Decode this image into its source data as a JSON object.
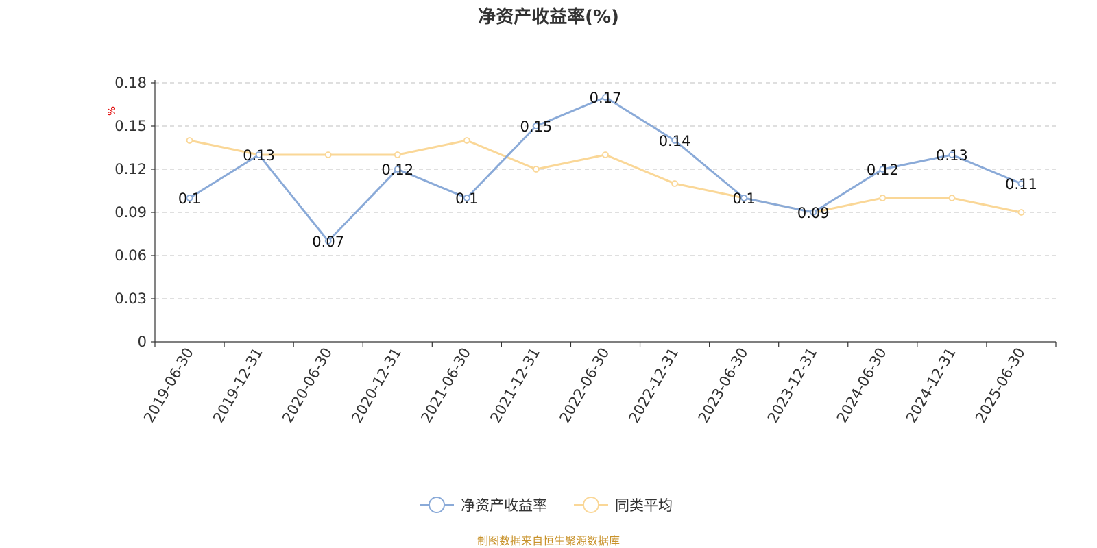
{
  "chart_data": {
    "type": "line",
    "title": "净资产收益率(%)",
    "ylabel": "%",
    "xlabel": "",
    "categories": [
      "2019-06-30",
      "2019-12-31",
      "2020-06-30",
      "2020-12-31",
      "2021-06-30",
      "2021-12-31",
      "2022-06-30",
      "2022-12-31",
      "2023-06-30",
      "2023-12-31",
      "2024-06-30",
      "2024-12-31",
      "2025-06-30"
    ],
    "y_ticks": [
      "0",
      "0.03",
      "0.06",
      "0.09",
      "0.12",
      "0.15",
      "0.18"
    ],
    "ylim": [
      0,
      0.18
    ],
    "grid": true,
    "legend_position": "bottom-center",
    "series": [
      {
        "name": "净资产收益率",
        "color": "#8aaad8",
        "values": [
          0.1,
          0.13,
          0.07,
          0.12,
          0.1,
          0.15,
          0.17,
          0.14,
          0.1,
          0.09,
          0.12,
          0.13,
          0.11
        ],
        "labels": [
          "0.1",
          "0.13",
          "0.07",
          "0.12",
          "0.1",
          "0.15",
          "0.17",
          "0.14",
          "0.1",
          "0.09",
          "0.12",
          "0.13",
          "0.11"
        ]
      },
      {
        "name": "同类平均",
        "color": "#fad797",
        "values": [
          0.14,
          0.13,
          0.13,
          0.13,
          0.14,
          0.12,
          0.13,
          0.11,
          0.1,
          0.09,
          0.1,
          0.1,
          0.09
        ]
      }
    ]
  },
  "source_text": "制图数据来自恒生聚源数据库"
}
